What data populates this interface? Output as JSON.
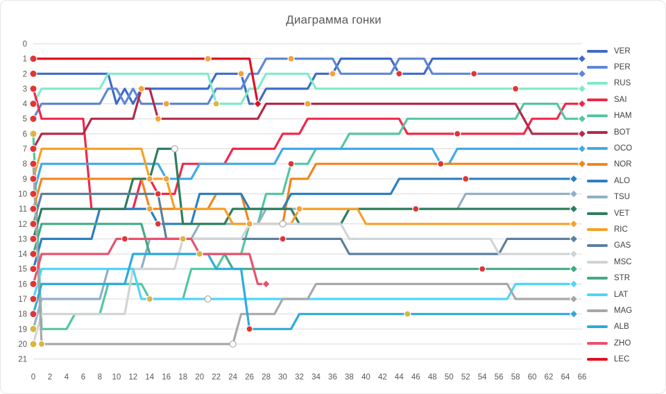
{
  "window": {
    "title": "Диаграмма гонки"
  },
  "chart_data": {
    "type": "line",
    "subtype": "bump-race-positions",
    "title": "Диаграмма гонки",
    "xlabel": "",
    "ylabel": "",
    "x_range": [
      0,
      66
    ],
    "y_range": [
      0,
      21
    ],
    "y_inverted": true,
    "grid": "horizontal",
    "legend_position": "right",
    "x_ticks": [
      0,
      2,
      4,
      6,
      8,
      10,
      12,
      14,
      16,
      18,
      20,
      22,
      24,
      26,
      28,
      30,
      32,
      34,
      36,
      38,
      40,
      42,
      44,
      46,
      48,
      50,
      52,
      54,
      56,
      58,
      60,
      62,
      64,
      66
    ],
    "y_ticks": [
      0,
      1,
      2,
      3,
      4,
      5,
      6,
      7,
      8,
      9,
      10,
      11,
      12,
      13,
      14,
      15,
      16,
      17,
      18,
      19,
      20,
      21
    ],
    "marker_colors": {
      "o": "#F2A33C",
      "r": "#E23434",
      "y": "#D9B544",
      "w": "#FFFFFF"
    },
    "series": [
      {
        "name": "VER",
        "color": "#3F6BC8",
        "start_tyre": "r",
        "end_lap": 66,
        "breakpoints": [
          [
            0,
            2
          ],
          [
            10,
            4
          ],
          [
            11,
            3
          ],
          [
            12,
            4
          ],
          [
            13,
            3
          ],
          [
            22,
            2
          ],
          [
            26,
            4
          ],
          [
            28,
            3
          ],
          [
            34,
            2
          ],
          [
            37,
            1
          ],
          [
            44,
            2
          ],
          [
            48,
            1
          ]
        ],
        "stops": [
          [
            13,
            "o"
          ],
          [
            25,
            "o"
          ],
          [
            36,
            "o"
          ],
          [
            44,
            "r"
          ]
        ]
      },
      {
        "name": "PER",
        "color": "#5E87D5",
        "start_tyre": "r",
        "end_lap": 66,
        "breakpoints": [
          [
            0,
            5
          ],
          [
            1,
            4
          ],
          [
            9,
            3
          ],
          [
            11,
            4
          ],
          [
            12,
            3
          ],
          [
            13,
            4
          ],
          [
            22,
            3
          ],
          [
            26,
            2
          ],
          [
            28,
            1
          ],
          [
            37,
            2
          ],
          [
            44,
            1
          ],
          [
            48,
            2
          ]
        ],
        "stops": [
          [
            16,
            "o"
          ],
          [
            31,
            "o"
          ],
          [
            53,
            "r"
          ]
        ]
      },
      {
        "name": "RUS",
        "color": "#7FEBCB",
        "start_tyre": "r",
        "end_lap": 66,
        "breakpoints": [
          [
            0,
            4
          ],
          [
            1,
            3
          ],
          [
            9,
            2
          ],
          [
            22,
            4
          ],
          [
            26,
            3
          ],
          [
            28,
            2
          ],
          [
            34,
            3
          ]
        ],
        "stops": [
          [
            22,
            "y"
          ],
          [
            58,
            "r"
          ]
        ]
      },
      {
        "name": "SAI",
        "color": "#F0284A",
        "start_tyre": "r",
        "end_lap": 66,
        "breakpoints": [
          [
            0,
            3
          ],
          [
            1,
            5
          ],
          [
            7,
            11
          ],
          [
            13,
            9
          ],
          [
            15,
            10
          ],
          [
            18,
            8
          ],
          [
            24,
            7
          ],
          [
            30,
            6
          ],
          [
            33,
            5
          ],
          [
            45,
            6
          ],
          [
            60,
            5
          ],
          [
            64,
            4
          ]
        ],
        "stops": [
          [
            15,
            "r"
          ],
          [
            51,
            "r"
          ]
        ]
      },
      {
        "name": "HAM",
        "color": "#53C6A2",
        "start_tyre": "y",
        "end_lap": 66,
        "breakpoints": [
          [
            0,
            6
          ],
          [
            1,
            19
          ],
          [
            5,
            18
          ],
          [
            9,
            16
          ],
          [
            14,
            17
          ],
          [
            19,
            15
          ],
          [
            23,
            14
          ],
          [
            26,
            12
          ],
          [
            28,
            10
          ],
          [
            31,
            8
          ],
          [
            34,
            7
          ],
          [
            38,
            6
          ],
          [
            45,
            5
          ],
          [
            59,
            4
          ],
          [
            64,
            5
          ]
        ],
        "stops": [
          [
            14,
            "y"
          ],
          [
            31,
            "r"
          ]
        ]
      },
      {
        "name": "BOT",
        "color": "#B22A49",
        "start_tyre": "r",
        "end_lap": 66,
        "breakpoints": [
          [
            0,
            7
          ],
          [
            1,
            6
          ],
          [
            7,
            5
          ],
          [
            13,
            3
          ],
          [
            15,
            5
          ],
          [
            28,
            4
          ],
          [
            59,
            5
          ],
          [
            60,
            6
          ]
        ],
        "stops": [
          [
            15,
            "o"
          ],
          [
            33,
            "o"
          ]
        ]
      },
      {
        "name": "OCO",
        "color": "#3FA9E8",
        "start_tyre": "r",
        "end_lap": 66,
        "breakpoints": [
          [
            0,
            10
          ],
          [
            1,
            8
          ],
          [
            16,
            9
          ],
          [
            20,
            8
          ],
          [
            30,
            7
          ],
          [
            49,
            8
          ],
          [
            51,
            7
          ]
        ],
        "stops": [
          [
            16,
            "o"
          ],
          [
            49,
            "r"
          ]
        ]
      },
      {
        "name": "NOR",
        "color": "#F0861E",
        "start_tyre": "r",
        "end_lap": 66,
        "breakpoints": [
          [
            0,
            11
          ],
          [
            1,
            9
          ],
          [
            14,
            11
          ],
          [
            22,
            10
          ],
          [
            26,
            12
          ],
          [
            31,
            9
          ],
          [
            34,
            8
          ]
        ],
        "stops": [
          [
            14,
            "o"
          ],
          [
            26,
            "o"
          ]
        ]
      },
      {
        "name": "ALO",
        "color": "#2C7FC0",
        "start_tyre": "r",
        "end_lap": 65,
        "breakpoints": [
          [
            0,
            15
          ],
          [
            1,
            13
          ],
          [
            8,
            11
          ],
          [
            15,
            12
          ],
          [
            20,
            10
          ],
          [
            26,
            11
          ],
          [
            31,
            10
          ],
          [
            44,
            9
          ]
        ],
        "stops": [
          [
            15,
            "r"
          ],
          [
            52,
            "r"
          ]
        ]
      },
      {
        "name": "TSU",
        "color": "#8FB0C8",
        "start_tyre": "y",
        "end_lap": 65,
        "breakpoints": [
          [
            0,
            19
          ],
          [
            1,
            17
          ],
          [
            9,
            15
          ],
          [
            14,
            13
          ],
          [
            20,
            12
          ],
          [
            28,
            11
          ],
          [
            52,
            10
          ]
        ],
        "stops": [
          [
            18,
            "y"
          ],
          [
            46,
            "r"
          ]
        ]
      },
      {
        "name": "VET",
        "color": "#2E7D5C",
        "start_tyre": "r",
        "end_lap": 65,
        "breakpoints": [
          [
            0,
            13
          ],
          [
            1,
            11
          ],
          [
            12,
            9
          ],
          [
            15,
            7
          ],
          [
            18,
            12
          ],
          [
            24,
            11
          ],
          [
            32,
            12
          ],
          [
            38,
            11
          ]
        ],
        "stops": [
          [
            17,
            "w"
          ]
        ]
      },
      {
        "name": "RIC",
        "color": "#F5A027",
        "start_tyre": "r",
        "end_lap": 65,
        "breakpoints": [
          [
            0,
            9
          ],
          [
            1,
            7
          ],
          [
            14,
            9
          ],
          [
            17,
            11
          ],
          [
            24,
            12
          ],
          [
            32,
            11
          ],
          [
            40,
            12
          ]
        ],
        "stops": [
          [
            14,
            "o"
          ],
          [
            32,
            "o"
          ]
        ]
      },
      {
        "name": "GAS",
        "color": "#5C809E",
        "start_tyre": "r",
        "end_lap": 65,
        "breakpoints": [
          [
            0,
            12
          ],
          [
            1,
            10
          ],
          [
            16,
            13
          ],
          [
            38,
            14
          ],
          [
            57,
            13
          ]
        ],
        "stops": [
          [
            30,
            "r"
          ]
        ]
      },
      {
        "name": "MSC",
        "color": "#D0D4D6",
        "start_tyre": "y",
        "end_lap": 65,
        "breakpoints": [
          [
            0,
            20
          ],
          [
            1,
            18
          ],
          [
            12,
            15
          ],
          [
            18,
            13
          ],
          [
            26,
            12
          ],
          [
            38,
            13
          ],
          [
            56,
            14
          ]
        ],
        "stops": [
          [
            30,
            "w"
          ]
        ]
      },
      {
        "name": "STR",
        "color": "#44A985",
        "start_tyre": "r",
        "end_lap": 65,
        "breakpoints": [
          [
            0,
            14
          ],
          [
            1,
            12
          ],
          [
            14,
            14
          ],
          [
            24,
            15
          ]
        ],
        "stops": [
          [
            20,
            "y"
          ],
          [
            54,
            "r"
          ]
        ]
      },
      {
        "name": "LAT",
        "color": "#4FD5F7",
        "start_tyre": "r",
        "end_lap": 65,
        "breakpoints": [
          [
            0,
            17
          ],
          [
            1,
            15
          ],
          [
            13,
            17
          ],
          [
            58,
            16
          ]
        ],
        "stops": [
          [
            21,
            "w"
          ]
        ]
      },
      {
        "name": "MAG",
        "color": "#A6A8AA",
        "start_tyre": "r",
        "end_lap": 65,
        "breakpoints": [
          [
            0,
            8
          ],
          [
            1,
            20
          ],
          [
            25,
            18
          ],
          [
            30,
            17
          ],
          [
            34,
            16
          ],
          [
            58,
            17
          ]
        ],
        "stops": [
          [
            1,
            "y"
          ],
          [
            24,
            "w"
          ]
        ]
      },
      {
        "name": "ALB",
        "color": "#2EAADC",
        "start_tyre": "r",
        "end_lap": 65,
        "breakpoints": [
          [
            0,
            18
          ],
          [
            1,
            16
          ],
          [
            12,
            14
          ],
          [
            22,
            15
          ],
          [
            26,
            19
          ],
          [
            32,
            18
          ]
        ],
        "stops": [
          [
            26,
            "r"
          ],
          [
            45,
            "y"
          ]
        ]
      },
      {
        "name": "ZHO",
        "color": "#E8526E",
        "start_tyre": "r",
        "end_lap": 28,
        "breakpoints": [
          [
            0,
            16
          ],
          [
            1,
            14
          ],
          [
            10,
            13
          ],
          [
            20,
            14
          ],
          [
            27,
            16
          ]
        ],
        "stops": [
          [
            11,
            "r"
          ]
        ]
      },
      {
        "name": "LEC",
        "color": "#E01020",
        "start_tyre": "r",
        "end_lap": 27,
        "breakpoints": [
          [
            0,
            1
          ],
          [
            27,
            4
          ]
        ],
        "stops": [
          [
            21,
            "o"
          ]
        ]
      }
    ]
  },
  "colors": {
    "grid": "#D9D9D9",
    "axis_text": "#595959",
    "title_text": "#595959",
    "legend_text": "#404040",
    "border": "#E6E6E6"
  }
}
